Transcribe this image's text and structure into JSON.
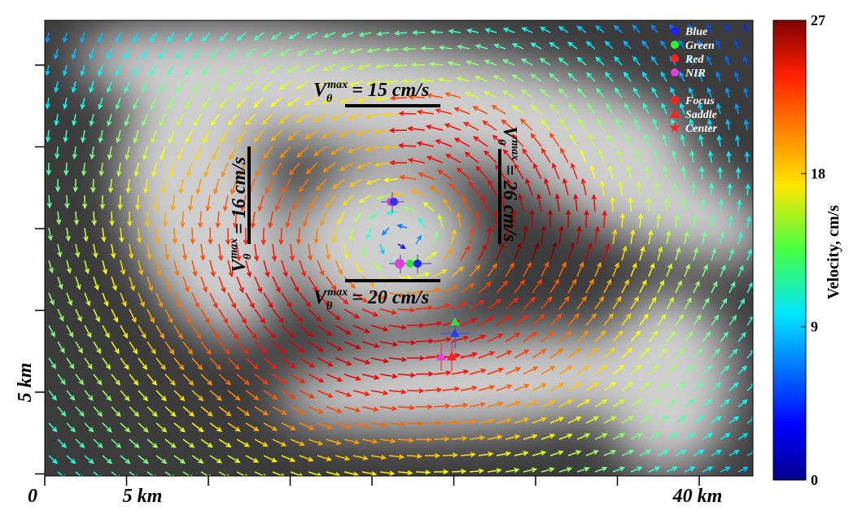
{
  "chart_data": {
    "type": "vector-field",
    "colorbar": {
      "label": "Velocity, cm/s",
      "lim": [
        0,
        27
      ],
      "ticks": [
        0,
        9,
        18,
        27
      ]
    },
    "x_labels": [
      "0",
      "5 km",
      "40 km"
    ],
    "y_label": "5 km",
    "annotations": [
      {
        "symbol": "V",
        "sub": "θ",
        "sup": "max",
        "text": "= 15 cm/s"
      },
      {
        "symbol": "V",
        "sub": "θ",
        "sup": "max",
        "text": "= 20 cm/s"
      },
      {
        "symbol": "V",
        "sub": "θ",
        "sup": "max",
        "text": "= 16 cm/s"
      },
      {
        "symbol": "V",
        "sub": "θ",
        "sup": "max",
        "text": "= 26 cm/s"
      }
    ],
    "legend": {
      "bands": [
        "Blue",
        "Green",
        "Red",
        "NIR"
      ],
      "features": [
        "Focus",
        "Saddle",
        "Center"
      ]
    }
  }
}
